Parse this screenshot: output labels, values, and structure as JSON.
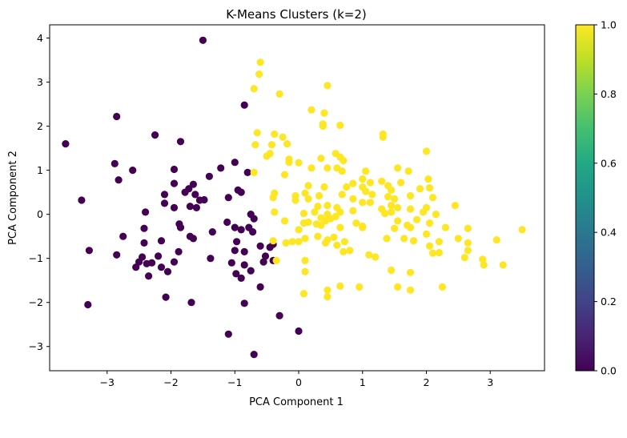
{
  "chart_data": {
    "type": "scatter",
    "title": "K-Means Clusters (k=2)",
    "xlabel": "PCA Component 1",
    "ylabel": "PCA Component 2",
    "xlim": [
      -3.9,
      3.85
    ],
    "ylim": [
      -3.55,
      4.3
    ],
    "xticks": [
      -3,
      -2,
      -1,
      0,
      1,
      2,
      3
    ],
    "yticks": [
      -3,
      -2,
      -1,
      0,
      1,
      2,
      3,
      4
    ],
    "grid": false,
    "colorbar": {
      "min": 0.0,
      "max": 1.0,
      "ticks": [
        0.0,
        0.2,
        0.4,
        0.6,
        0.8,
        1.0
      ],
      "tick_labels": [
        "0.0",
        "0.2",
        "0.4",
        "0.6",
        "0.8",
        "1.0"
      ],
      "colormap": "viridis"
    },
    "series": [
      {
        "cluster": 0,
        "color": "#440154",
        "points": [
          [
            -1.5,
            3.95
          ],
          [
            -3.65,
            1.6
          ],
          [
            -2.85,
            2.22
          ],
          [
            -2.25,
            1.8
          ],
          [
            -1.85,
            1.65
          ],
          [
            -0.85,
            2.48
          ],
          [
            -2.88,
            1.15
          ],
          [
            -2.82,
            0.78
          ],
          [
            -2.6,
            1.0
          ],
          [
            -1.95,
            1.02
          ],
          [
            -1.65,
            0.68
          ],
          [
            -1.72,
            0.58
          ],
          [
            -1.4,
            0.86
          ],
          [
            -1.22,
            1.05
          ],
          [
            -1.0,
            1.18
          ],
          [
            -3.4,
            0.32
          ],
          [
            -2.4,
            0.05
          ],
          [
            -2.1,
            0.45
          ],
          [
            -1.95,
            0.7
          ],
          [
            -1.78,
            0.5
          ],
          [
            -1.62,
            0.45
          ],
          [
            -1.55,
            0.32
          ],
          [
            -1.48,
            0.33
          ],
          [
            -1.1,
            0.38
          ],
          [
            -0.95,
            0.55
          ],
          [
            -0.9,
            0.5
          ],
          [
            -0.8,
            0.95
          ],
          [
            -2.1,
            0.25
          ],
          [
            -1.95,
            0.15
          ],
          [
            -1.85,
            -0.3
          ],
          [
            -1.7,
            0.18
          ],
          [
            -1.6,
            0.15
          ],
          [
            -1.35,
            -0.4
          ],
          [
            -1.12,
            -0.18
          ],
          [
            -0.75,
            0.0
          ],
          [
            -0.7,
            -0.1
          ],
          [
            -0.9,
            -0.35
          ],
          [
            -2.42,
            -0.32
          ],
          [
            -1.87,
            -0.22
          ],
          [
            -2.75,
            -0.5
          ],
          [
            -2.42,
            -0.65
          ],
          [
            -2.15,
            -0.6
          ],
          [
            -1.7,
            -0.5
          ],
          [
            -1.65,
            -0.55
          ],
          [
            -1.0,
            -0.3
          ],
          [
            -0.97,
            -0.62
          ],
          [
            -0.78,
            -0.3
          ],
          [
            -0.72,
            -0.4
          ],
          [
            -0.6,
            -0.72
          ],
          [
            -0.45,
            -0.75
          ],
          [
            -0.4,
            -0.68
          ],
          [
            -3.28,
            -0.82
          ],
          [
            -2.85,
            -0.92
          ],
          [
            -2.45,
            -0.97
          ],
          [
            -2.3,
            -1.1
          ],
          [
            -2.2,
            -0.95
          ],
          [
            -1.88,
            -0.85
          ],
          [
            -1.0,
            -0.82
          ],
          [
            -0.85,
            -0.85
          ],
          [
            -0.52,
            -0.95
          ],
          [
            -1.38,
            -1.0
          ],
          [
            -2.55,
            -1.2
          ],
          [
            -2.38,
            -1.12
          ],
          [
            -2.5,
            -1.08
          ],
          [
            -2.15,
            -1.2
          ],
          [
            -2.05,
            -1.3
          ],
          [
            -1.95,
            -1.08
          ],
          [
            -1.05,
            -1.1
          ],
          [
            -0.85,
            -1.15
          ],
          [
            -0.55,
            -1.08
          ],
          [
            -0.4,
            -1.05
          ],
          [
            -2.35,
            -1.4
          ],
          [
            -0.98,
            -1.35
          ],
          [
            -0.75,
            -1.28
          ],
          [
            -0.9,
            -1.45
          ],
          [
            -0.6,
            -1.65
          ],
          [
            -2.08,
            -1.88
          ],
          [
            -1.68,
            -2.0
          ],
          [
            -0.85,
            -2.02
          ],
          [
            -0.3,
            -2.3
          ],
          [
            -3.3,
            -2.05
          ],
          [
            -1.1,
            -2.72
          ],
          [
            0.0,
            -2.65
          ],
          [
            -0.7,
            -3.18
          ]
        ]
      },
      {
        "cluster": 1,
        "color": "#fde725",
        "points": [
          [
            -0.6,
            3.45
          ],
          [
            -0.62,
            3.18
          ],
          [
            -0.7,
            2.85
          ],
          [
            -0.3,
            2.73
          ],
          [
            0.45,
            2.92
          ],
          [
            0.2,
            2.37
          ],
          [
            0.4,
            2.3
          ],
          [
            0.38,
            2.05
          ],
          [
            0.38,
            2.0
          ],
          [
            0.65,
            2.02
          ],
          [
            -0.65,
            1.85
          ],
          [
            -0.38,
            1.82
          ],
          [
            -0.25,
            1.75
          ],
          [
            -0.68,
            1.58
          ],
          [
            -0.42,
            1.58
          ],
          [
            -0.18,
            1.6
          ],
          [
            1.32,
            1.82
          ],
          [
            1.32,
            1.75
          ],
          [
            -0.45,
            1.38
          ],
          [
            -0.5,
            1.32
          ],
          [
            -0.15,
            1.25
          ],
          [
            -0.15,
            1.18
          ],
          [
            0.0,
            1.17
          ],
          [
            0.35,
            1.27
          ],
          [
            0.58,
            1.38
          ],
          [
            0.65,
            1.3
          ],
          [
            0.7,
            1.22
          ],
          [
            2.0,
            1.43
          ],
          [
            0.45,
            1.05
          ],
          [
            0.6,
            1.05
          ],
          [
            0.68,
            0.98
          ],
          [
            0.2,
            1.05
          ],
          [
            1.05,
            0.98
          ],
          [
            1.12,
            0.72
          ],
          [
            1.55,
            1.05
          ],
          [
            1.72,
            0.98
          ],
          [
            1.0,
            0.8
          ],
          [
            1.3,
            0.75
          ],
          [
            1.4,
            0.65
          ],
          [
            0.15,
            0.65
          ],
          [
            0.4,
            0.62
          ],
          [
            0.75,
            0.62
          ],
          [
            0.85,
            0.7
          ],
          [
            1.0,
            0.62
          ],
          [
            1.45,
            0.55
          ],
          [
            1.6,
            0.72
          ],
          [
            2.03,
            0.8
          ],
          [
            -0.7,
            0.95
          ],
          [
            -0.22,
            0.9
          ],
          [
            -0.38,
            0.48
          ],
          [
            -0.4,
            0.38
          ],
          [
            0.32,
            0.42
          ],
          [
            0.68,
            0.45
          ],
          [
            1.05,
            0.52
          ],
          [
            1.15,
            0.45
          ],
          [
            1.9,
            0.58
          ],
          [
            2.05,
            0.6
          ],
          [
            -0.05,
            0.42
          ],
          [
            -0.05,
            0.32
          ],
          [
            0.1,
            0.48
          ],
          [
            0.15,
            0.35
          ],
          [
            0.85,
            0.35
          ],
          [
            1.0,
            0.27
          ],
          [
            1.12,
            0.27
          ],
          [
            1.4,
            0.4
          ],
          [
            1.5,
            0.35
          ],
          [
            1.75,
            0.42
          ],
          [
            2.1,
            0.38
          ],
          [
            2.45,
            0.2
          ],
          [
            0.3,
            0.18
          ],
          [
            0.45,
            0.2
          ],
          [
            0.6,
            0.15
          ],
          [
            1.3,
            0.12
          ],
          [
            1.45,
            0.2
          ],
          [
            1.55,
            0.15
          ],
          [
            1.75,
            0.12
          ],
          [
            2.0,
            0.15
          ],
          [
            -0.38,
            0.05
          ],
          [
            0.08,
            0.02
          ],
          [
            0.25,
            0.05
          ],
          [
            0.45,
            0.0
          ],
          [
            0.65,
            0.05
          ],
          [
            0.85,
            0.08
          ],
          [
            1.35,
            0.02
          ],
          [
            1.45,
            0.05
          ],
          [
            1.95,
            0.05
          ],
          [
            2.15,
            0.0
          ],
          [
            0.35,
            -0.08
          ],
          [
            0.5,
            -0.1
          ],
          [
            0.58,
            -0.05
          ],
          [
            0.9,
            -0.2
          ],
          [
            1.0,
            -0.27
          ],
          [
            1.55,
            -0.15
          ],
          [
            1.85,
            -0.12
          ],
          [
            2.05,
            -0.2
          ],
          [
            -0.22,
            -0.15
          ],
          [
            0.08,
            -0.2
          ],
          [
            0.15,
            -0.18
          ],
          [
            0.28,
            -0.22
          ],
          [
            0.35,
            -0.25
          ],
          [
            0.42,
            -0.15
          ],
          [
            0.65,
            -0.3
          ],
          [
            1.0,
            -0.3
          ],
          [
            1.5,
            -0.32
          ],
          [
            1.7,
            -0.25
          ],
          [
            1.75,
            -0.3
          ],
          [
            2.3,
            -0.3
          ],
          [
            2.65,
            -0.32
          ],
          [
            3.5,
            -0.35
          ],
          [
            -0.4,
            -0.6
          ],
          [
            0.0,
            -0.35
          ],
          [
            0.1,
            -0.55
          ],
          [
            0.3,
            -0.5
          ],
          [
            0.45,
            -0.58
          ],
          [
            0.55,
            -0.52
          ],
          [
            0.72,
            -0.62
          ],
          [
            1.38,
            -0.55
          ],
          [
            1.65,
            -0.55
          ],
          [
            2.0,
            -0.45
          ],
          [
            2.05,
            -0.72
          ],
          [
            2.2,
            -0.62
          ],
          [
            2.5,
            -0.55
          ],
          [
            3.1,
            -0.58
          ],
          [
            -0.2,
            -0.65
          ],
          [
            -0.1,
            -0.62
          ],
          [
            0.0,
            -0.62
          ],
          [
            0.42,
            -0.65
          ],
          [
            0.6,
            -0.7
          ],
          [
            1.8,
            -0.6
          ],
          [
            2.1,
            -0.88
          ],
          [
            2.2,
            -0.87
          ],
          [
            2.65,
            -0.65
          ],
          [
            2.65,
            -0.82
          ],
          [
            0.7,
            -0.85
          ],
          [
            0.8,
            -0.82
          ],
          [
            1.1,
            -0.92
          ],
          [
            1.2,
            -0.97
          ],
          [
            2.6,
            -0.98
          ],
          [
            -0.35,
            -1.05
          ],
          [
            0.1,
            -1.05
          ],
          [
            0.1,
            -1.3
          ],
          [
            1.45,
            -1.27
          ],
          [
            1.75,
            -1.32
          ],
          [
            2.88,
            -1.02
          ],
          [
            2.9,
            -1.15
          ],
          [
            3.2,
            -1.15
          ],
          [
            0.45,
            -1.72
          ],
          [
            0.45,
            -1.87
          ],
          [
            0.65,
            -1.63
          ],
          [
            0.95,
            -1.65
          ],
          [
            1.55,
            -1.65
          ],
          [
            1.75,
            -1.72
          ],
          [
            2.25,
            -1.65
          ],
          [
            0.08,
            -1.8
          ]
        ]
      }
    ]
  }
}
